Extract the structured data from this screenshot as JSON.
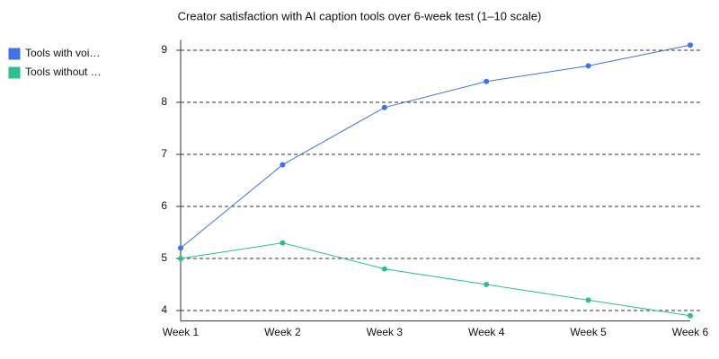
{
  "chart_data": {
    "type": "line",
    "title": "Creator satisfaction with AI caption tools over 6-week test (1–10 scale)",
    "categories": [
      "Week 1",
      "Week 2",
      "Week 3",
      "Week 4",
      "Week 5",
      "Week 6"
    ],
    "series": [
      {
        "name": "Tools with voi…",
        "color": "#3f72e4",
        "values": [
          5.2,
          6.8,
          7.9,
          8.4,
          8.7,
          9.1
        ]
      },
      {
        "name": "Tools without …",
        "color": "#2dbf87",
        "values": [
          5.0,
          5.3,
          4.8,
          4.5,
          4.2,
          3.9
        ]
      }
    ],
    "ylim": [
      3.8,
      9.2
    ],
    "yticks": [
      4,
      5,
      6,
      7,
      8,
      9
    ],
    "grid": true,
    "legend": "left"
  }
}
